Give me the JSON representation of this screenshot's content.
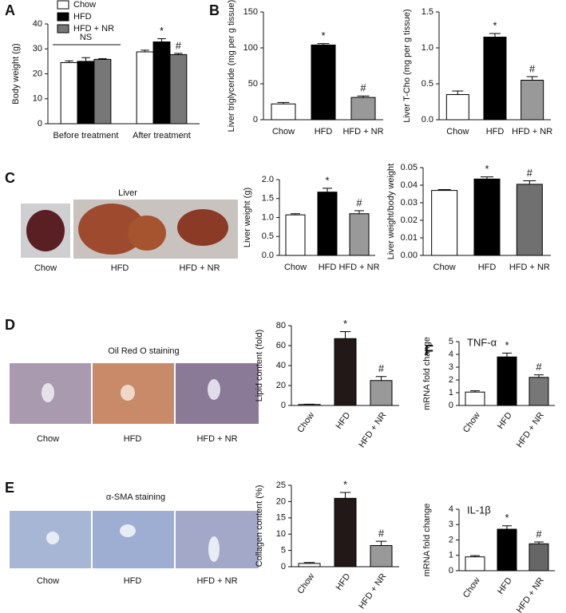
{
  "panel_labels": [
    "A",
    "B",
    "C",
    "D",
    "E",
    "F"
  ],
  "images": [
    {
      "title": "Liver",
      "labels": [
        "Chow",
        "HFD",
        "HFD + NR"
      ]
    },
    {
      "title": "Oil Red O staining",
      "labels": [
        "Chow",
        "HFD",
        "HFD + NR"
      ]
    },
    {
      "title": "α-SMA staining",
      "labels": [
        "Chow",
        "HFD",
        "HFD + NR"
      ]
    }
  ],
  "chart_data": [
    {
      "type": "bar",
      "y_label": "Body weight (g)",
      "categories": [
        "Before treatment",
        "After treatment"
      ],
      "series": [
        {
          "name": "Chow",
          "color": "#ffffff",
          "values": [
            24.5,
            28.8
          ],
          "errors": [
            0.7,
            0.7
          ],
          "markers": [
            null,
            null
          ]
        },
        {
          "name": "HFD",
          "color": "#000000",
          "values": [
            25,
            32.8
          ],
          "errors": [
            1.5,
            1.3
          ],
          "markers": [
            null,
            "*"
          ]
        },
        {
          "name": "HFD + NR",
          "color": "#777777",
          "values": [
            25.8,
            27.7
          ],
          "errors": [
            0.3,
            0.5
          ],
          "markers": [
            null,
            "#"
          ]
        }
      ],
      "annotations": [
        "NS"
      ],
      "ylim": [
        0,
        40
      ],
      "yticks": [
        0,
        10,
        20,
        30,
        40
      ]
    },
    {
      "type": "bar",
      "y_label": "Liver triglyceride (mg per g tissue)",
      "categories": [
        "Chow",
        "HFD",
        "HFD + NR"
      ],
      "values": [
        22,
        104,
        31
      ],
      "errors": [
        2,
        2,
        2
      ],
      "colors": [
        "#ffffff",
        "#000000",
        "#999999"
      ],
      "markers": [
        null,
        "*",
        "#"
      ],
      "ylim": [
        0,
        150
      ],
      "yticks": [
        0,
        50,
        100,
        150
      ]
    },
    {
      "type": "bar",
      "y_label": "Liver T-Cho (mg per g tissue)",
      "categories": [
        "Chow",
        "HFD",
        "HFD + NR"
      ],
      "values": [
        0.35,
        1.15,
        0.55
      ],
      "errors": [
        0.05,
        0.05,
        0.05
      ],
      "colors": [
        "#ffffff",
        "#000000",
        "#999999"
      ],
      "markers": [
        null,
        "*",
        "#"
      ],
      "ylim": [
        0,
        1.5
      ],
      "yticks": [
        {
          "value": 0,
          "label": "0.0"
        },
        0.5,
        {
          "value": 1,
          "label": "1.0"
        },
        1.5
      ]
    },
    {
      "type": "bar",
      "y_label": "Liver weight (g)",
      "categories": [
        "Chow",
        "HFD",
        "HFD + NR"
      ],
      "values": [
        1.07,
        1.67,
        1.1
      ],
      "errors": [
        0.03,
        0.1,
        0.08
      ],
      "colors": [
        "#ffffff",
        "#000000",
        "#999999"
      ],
      "markers": [
        null,
        "*",
        "#"
      ],
      "ylim": [
        0,
        2
      ],
      "yticks": [
        {
          "value": 0,
          "label": "0.0"
        },
        0.5,
        {
          "value": 1,
          "label": "1.0"
        },
        1.5,
        {
          "value": 2,
          "label": "2.0"
        }
      ]
    },
    {
      "type": "bar",
      "y_label": "Liver weight/body weight",
      "categories": [
        "Chow",
        "HFD",
        "HFD + NR"
      ],
      "values": [
        0.037,
        0.0435,
        0.0405
      ],
      "errors": [
        0.0005,
        0.0012,
        0.002
      ],
      "colors": [
        "#ffffff",
        "#000000",
        "#707070"
      ],
      "markers": [
        null,
        "*",
        "#"
      ],
      "ylim": [
        0,
        0.05
      ],
      "yticks": [
        {
          "value": 0,
          "label": "0.00"
        },
        {
          "value": 0.01,
          "label": "0.01"
        },
        {
          "value": 0.02,
          "label": "0.02"
        },
        {
          "value": 0.03,
          "label": "0.03"
        },
        {
          "value": 0.04,
          "label": "0.04"
        },
        {
          "value": 0.05,
          "label": "0.05"
        }
      ]
    },
    {
      "type": "bar",
      "y_label": "Lipid content (fold)",
      "categories": [
        "Chow",
        "HFD",
        "HFD + NR"
      ],
      "rotate_labels": true,
      "values": [
        1,
        67,
        25
      ],
      "errors": [
        0.3,
        7,
        4
      ],
      "colors": [
        "#ffffff",
        "#231818",
        "#999999"
      ],
      "markers": [
        null,
        "*",
        "#"
      ],
      "ylim": [
        0,
        80
      ],
      "yticks": [
        0,
        20,
        40,
        60,
        80
      ]
    },
    {
      "type": "bar",
      "title": "TNF-α",
      "y_label": "mRNA fold change",
      "categories": [
        "Chow",
        "HFD",
        "HFD + NR"
      ],
      "rotate_labels": true,
      "values": [
        1.05,
        3.8,
        2.2
      ],
      "errors": [
        0.1,
        0.3,
        0.2
      ],
      "colors": [
        "#ffffff",
        "#000000",
        "#777777"
      ],
      "markers": [
        null,
        "*",
        "#"
      ],
      "ylim": [
        0,
        5
      ],
      "yticks": [
        0,
        1,
        2,
        3,
        4,
        5
      ]
    },
    {
      "type": "bar",
      "y_label": "Collagen content (%)",
      "categories": [
        "Chow",
        "HFD",
        "HFD + NR"
      ],
      "rotate_labels": true,
      "values": [
        1,
        21,
        6.5
      ],
      "errors": [
        0.3,
        1.8,
        1.3
      ],
      "colors": [
        "#ffffff",
        "#231818",
        "#999999"
      ],
      "markers": [
        null,
        "*",
        "#"
      ],
      "ylim": [
        0,
        25
      ],
      "yticks": [
        0,
        5,
        10,
        15,
        20,
        25
      ]
    },
    {
      "type": "bar",
      "title": "IL-1β",
      "y_label": "mRNA fold change",
      "categories": [
        "Chow",
        "HFD",
        "HFD + NR"
      ],
      "rotate_labels": true,
      "values": [
        0.9,
        2.7,
        1.75
      ],
      "errors": [
        0.08,
        0.22,
        0.12
      ],
      "colors": [
        "#ffffff",
        "#000000",
        "#666666"
      ],
      "markers": [
        null,
        "*",
        "#"
      ],
      "ylim": [
        0,
        4
      ],
      "yticks": [
        0,
        1,
        2,
        3,
        4
      ]
    }
  ]
}
